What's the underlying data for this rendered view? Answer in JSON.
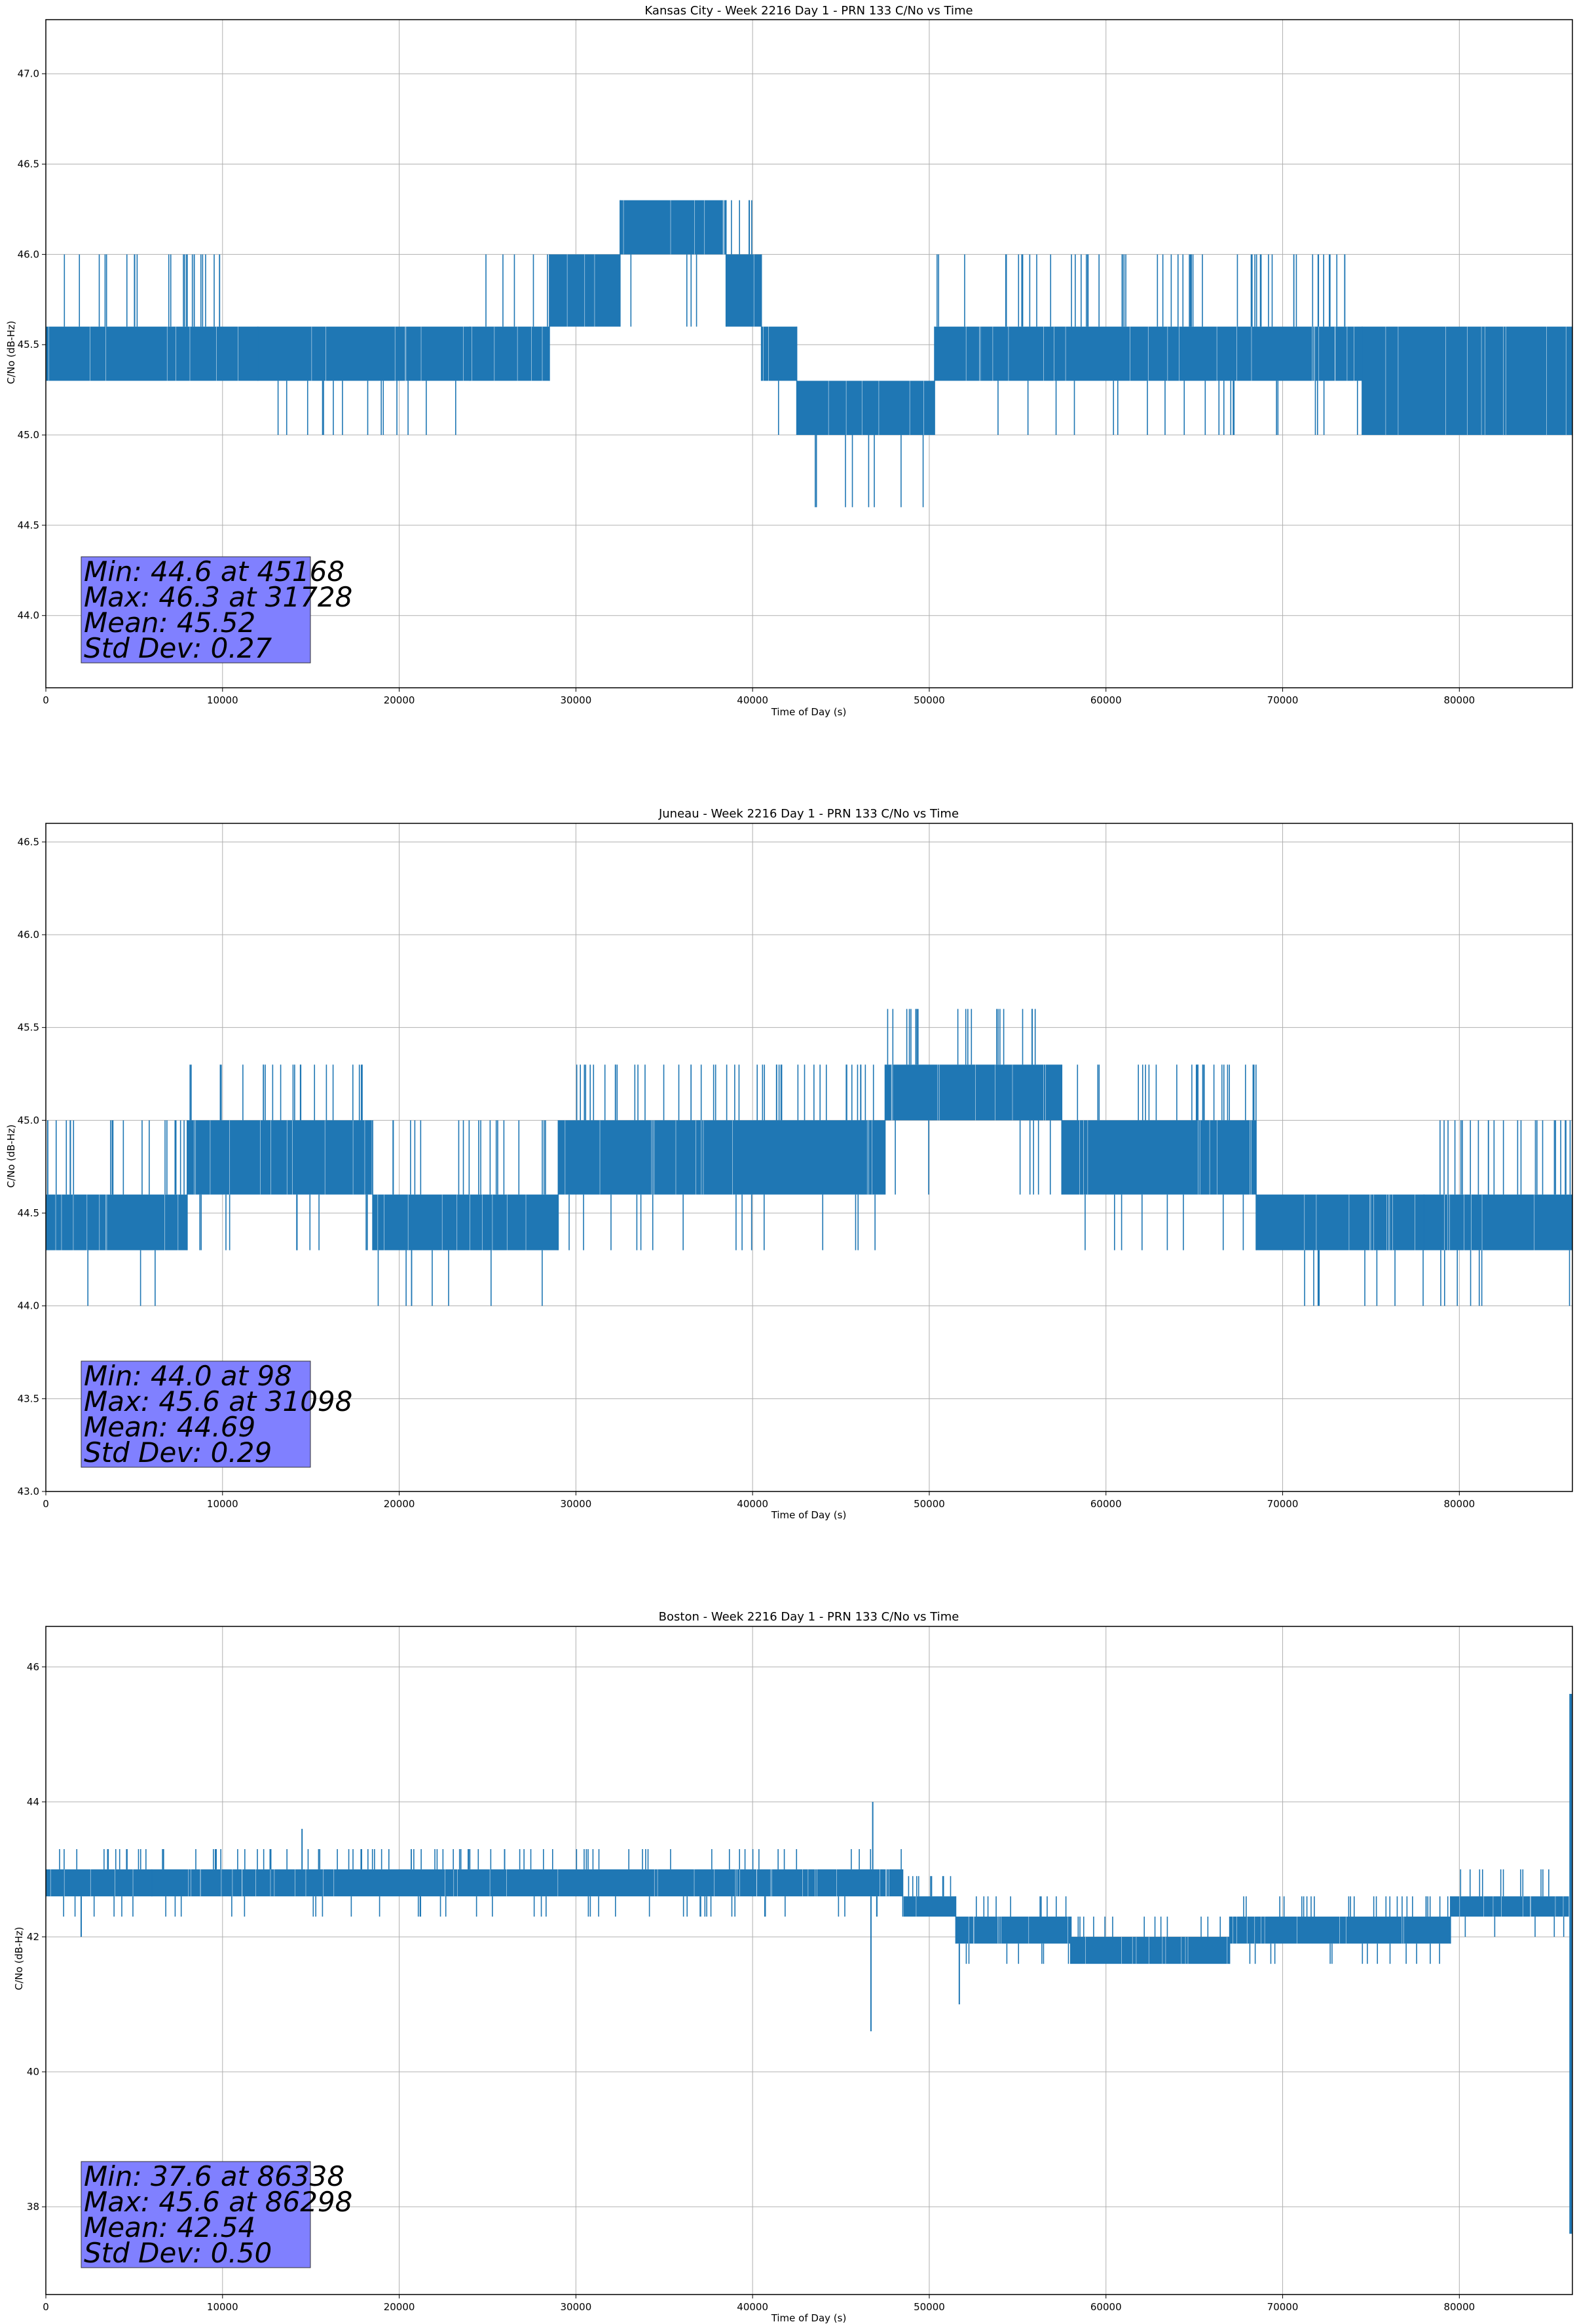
{
  "chart_data": [
    {
      "type": "line",
      "title": "Kansas City - Week 2216 Day 1 - PRN 133 C/No vs Time",
      "xlabel": "Time of Day (s)",
      "ylabel": "C/No (dB-Hz)",
      "xlim": [
        0,
        86400
      ],
      "ylim": [
        43.6,
        47.3
      ],
      "xticks": [
        0,
        10000,
        20000,
        30000,
        40000,
        50000,
        60000,
        70000,
        80000
      ],
      "yticks": [
        44.0,
        44.5,
        45.0,
        45.5,
        46.0,
        46.5,
        47.0
      ],
      "ytick_labels": [
        "44.0",
        "44.5",
        "45.0",
        "45.5",
        "46.0",
        "46.5",
        "47.0"
      ],
      "grid": true,
      "color": "#1f77b4",
      "series": [
        {
          "segments": [
            {
              "x0": 0,
              "x1": 12000,
              "low": 45.3,
              "high": 45.6,
              "spikes_up": 46.0,
              "spikes_down": 45.3
            },
            {
              "x0": 12000,
              "x1": 24000,
              "low": 45.3,
              "high": 45.6,
              "spikes_up": 45.6,
              "spikes_down": 45.0
            },
            {
              "x0": 24000,
              "x1": 28500,
              "low": 45.3,
              "high": 45.6,
              "spikes_up": 46.0,
              "spikes_down": 45.3
            },
            {
              "x0": 28500,
              "x1": 32500,
              "low": 45.6,
              "high": 46.0,
              "spikes_up": 46.0,
              "spikes_down": 45.6
            },
            {
              "x0": 32500,
              "x1": 38500,
              "low": 46.0,
              "high": 46.3,
              "spikes_up": 46.3,
              "spikes_down": 45.6
            },
            {
              "x0": 38500,
              "x1": 40500,
              "low": 45.6,
              "high": 46.0,
              "spikes_up": 46.3,
              "spikes_down": 45.6
            },
            {
              "x0": 40500,
              "x1": 42500,
              "low": 45.3,
              "high": 45.6,
              "spikes_up": 45.6,
              "spikes_down": 45.0
            },
            {
              "x0": 42500,
              "x1": 50300,
              "low": 45.0,
              "high": 45.3,
              "spikes_up": 45.3,
              "spikes_down": 44.6
            },
            {
              "x0": 50300,
              "x1": 74500,
              "low": 45.3,
              "high": 45.6,
              "spikes_up": 46.0,
              "spikes_down": 45.0
            },
            {
              "x0": 74500,
              "x1": 86400,
              "low": 45.0,
              "high": 45.6,
              "spikes_up": 45.6,
              "spikes_down": 45.0
            }
          ]
        }
      ],
      "stats": {
        "min": "Min: 44.6 at 45168",
        "max": "Max: 46.3 at 31728",
        "mean": "Mean: 45.52",
        "std": "Std Dev: 0.27"
      }
    },
    {
      "type": "line",
      "title": "Juneau - Week 2216 Day 1 - PRN 133 C/No vs Time",
      "xlabel": "Time of Day (s)",
      "ylabel": "C/No (dB-Hz)",
      "xlim": [
        0,
        86400
      ],
      "ylim": [
        43.0,
        46.6
      ],
      "xticks": [
        0,
        10000,
        20000,
        30000,
        40000,
        50000,
        60000,
        70000,
        80000
      ],
      "yticks": [
        43.0,
        43.5,
        44.0,
        44.5,
        45.0,
        45.5,
        46.0,
        46.5
      ],
      "ytick_labels": [
        "43.0",
        "43.5",
        "44.0",
        "44.5",
        "45.0",
        "45.5",
        "46.0",
        "46.5"
      ],
      "grid": true,
      "color": "#1f77b4",
      "series": [
        {
          "segments": [
            {
              "x0": 0,
              "x1": 8000,
              "low": 44.3,
              "high": 44.6,
              "spikes_up": 45.0,
              "spikes_down": 44.0
            },
            {
              "x0": 8000,
              "x1": 18500,
              "low": 44.6,
              "high": 45.0,
              "spikes_up": 45.3,
              "spikes_down": 44.3
            },
            {
              "x0": 18500,
              "x1": 29000,
              "low": 44.3,
              "high": 44.6,
              "spikes_up": 45.0,
              "spikes_down": 44.0
            },
            {
              "x0": 29000,
              "x1": 47500,
              "low": 44.6,
              "high": 45.0,
              "spikes_up": 45.3,
              "spikes_down": 44.3
            },
            {
              "x0": 47500,
              "x1": 57500,
              "low": 45.0,
              "high": 45.3,
              "spikes_up": 45.6,
              "spikes_down": 44.6
            },
            {
              "x0": 57500,
              "x1": 68500,
              "low": 44.6,
              "high": 45.0,
              "spikes_up": 45.3,
              "spikes_down": 44.3
            },
            {
              "x0": 68500,
              "x1": 78000,
              "low": 44.3,
              "high": 44.6,
              "spikes_up": 44.6,
              "spikes_down": 44.0
            },
            {
              "x0": 78000,
              "x1": 86400,
              "low": 44.3,
              "high": 44.6,
              "spikes_up": 45.0,
              "spikes_down": 44.0
            }
          ]
        }
      ],
      "stats": {
        "min": "Min: 44.0 at 98",
        "max": "Max: 45.6 at 31098",
        "mean": "Mean: 44.69",
        "std": "Std Dev: 0.29"
      }
    },
    {
      "type": "line",
      "title": "Boston - Week 2216 Day 1 - PRN 133 C/No vs Time",
      "xlabel": "Time of Day (s)",
      "ylabel": "C/No (dB-Hz)",
      "xlim": [
        0,
        86400
      ],
      "ylim": [
        36.7,
        46.6
      ],
      "xticks": [
        0,
        10000,
        20000,
        30000,
        40000,
        50000,
        60000,
        70000,
        80000
      ],
      "yticks": [
        38,
        40,
        42,
        44,
        46
      ],
      "ytick_labels": [
        "38",
        "40",
        "42",
        "44",
        "46"
      ],
      "grid": true,
      "color": "#1f77b4",
      "series": [
        {
          "segments": [
            {
              "x0": 0,
              "x1": 6000,
              "low": 42.6,
              "high": 43.0,
              "spikes_up": 43.3,
              "spikes_down": 42.3
            },
            {
              "x0": 6000,
              "x1": 40000,
              "low": 42.6,
              "high": 43.0,
              "spikes_up": 43.3,
              "spikes_down": 42.3
            },
            {
              "x0": 40000,
              "x1": 48500,
              "low": 42.6,
              "high": 43.0,
              "spikes_up": 43.3,
              "spikes_down": 42.3
            },
            {
              "x0": 48500,
              "x1": 51500,
              "low": 42.3,
              "high": 42.6,
              "spikes_up": 42.9,
              "spikes_down": 42.0
            },
            {
              "x0": 51500,
              "x1": 58000,
              "low": 41.9,
              "high": 42.3,
              "spikes_up": 42.6,
              "spikes_down": 41.6
            },
            {
              "x0": 58000,
              "x1": 67000,
              "low": 41.6,
              "high": 42.0,
              "spikes_up": 42.3,
              "spikes_down": 41.6
            },
            {
              "x0": 67000,
              "x1": 79500,
              "low": 41.9,
              "high": 42.3,
              "spikes_up": 42.6,
              "spikes_down": 41.6
            },
            {
              "x0": 79500,
              "x1": 86200,
              "low": 42.3,
              "high": 42.6,
              "spikes_up": 43.0,
              "spikes_down": 42.0
            }
          ],
          "outliers": [
            {
              "x": 2000,
              "y": 42.0
            },
            {
              "x": 46800,
              "y": 44.0
            },
            {
              "x": 46700,
              "y": 40.6
            },
            {
              "x": 51700,
              "y": 41.0
            },
            {
              "x": 14500,
              "y": 43.6
            }
          ],
          "end_spike": {
            "x": 86300,
            "low": 37.6,
            "high": 45.6
          }
        }
      ],
      "stats": {
        "min": "Min: 37.6 at 86338",
        "max": "Max: 45.6 at 86298",
        "mean": "Mean: 42.54",
        "std": "Std Dev: 0.50"
      }
    }
  ]
}
